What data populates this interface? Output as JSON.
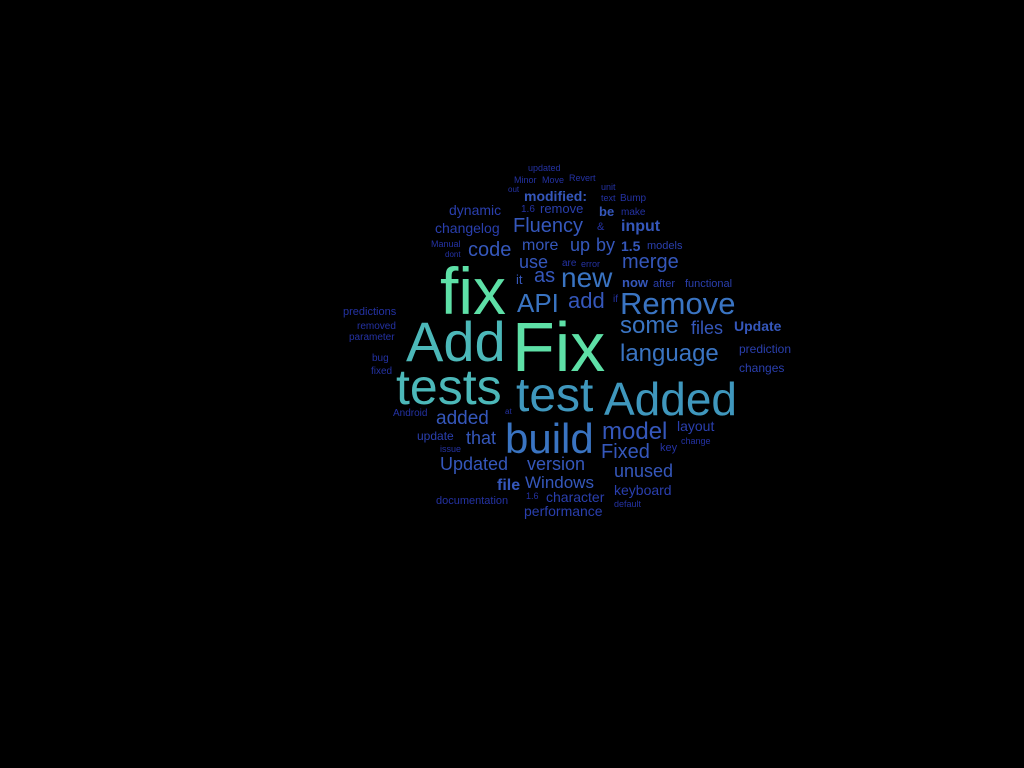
{
  "words": {
    "fix_big": "Fix",
    "fix_lower": "fix",
    "add": "Add",
    "tests": "tests",
    "test": "test",
    "added_big": "Added",
    "build": "build",
    "remove_cap": "Remove",
    "api": "API",
    "new": "new",
    "add_lower": "add",
    "as": "as",
    "some": "some",
    "language": "language",
    "model": "model",
    "fixed_cap": "Fixed",
    "updated_cap": "Updated",
    "version": "version",
    "unused": "unused",
    "windows": "Windows",
    "fluency": "Fluency",
    "merge": "merge",
    "code": "code",
    "use": "use",
    "input": "input",
    "files": "files",
    "update_cap": "Update",
    "added_lower": "added",
    "that": "that",
    "file": "file",
    "character": "character",
    "keyboard": "keyboard",
    "performance": "performance",
    "more": "more",
    "up": "up",
    "by": "by",
    "v15": "1.5",
    "modified": "modified:",
    "changelog": "changelog",
    "dynamic": "dynamic",
    "remove_lower": "remove",
    "be": "be",
    "now": "now",
    "it": "it",
    "layout": "layout",
    "prediction": "prediction",
    "changes": "changes",
    "models": "models",
    "after": "after",
    "functional": "functional",
    "update_lower": "update",
    "documentation": "documentation",
    "predictions": "predictions",
    "removed": "removed",
    "parameter": "parameter",
    "bug": "bug",
    "fixed_lower": "fixed",
    "android": "Android",
    "issue": "issue",
    "key": "key",
    "change": "change",
    "default": "default",
    "make": "make",
    "bump": "Bump",
    "text": "text",
    "unit": "unit",
    "revert": "Revert",
    "move": "Move",
    "minor": "Minor",
    "updated_lower": "updated",
    "out": "out",
    "v16a": "1.6",
    "v16b": "1.6",
    "amp": "&",
    "manual": "Manual",
    "dont": "dont",
    "are": "are",
    "error": "error",
    "if_word": "if",
    "at": "at"
  }
}
